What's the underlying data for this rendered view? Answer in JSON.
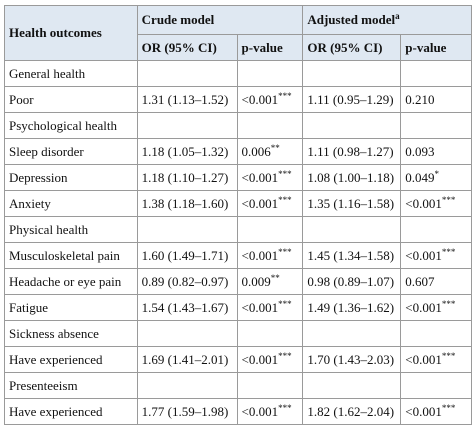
{
  "header": {
    "outcome": "Health outcomes",
    "crude": "Crude model",
    "adjusted": "Adjusted model",
    "adjusted_sup": "a",
    "columns": [
      "OR (95% CI)",
      "p-value",
      "OR (95% CI)",
      "p-value"
    ]
  },
  "rows": [
    {
      "label": "General health"
    },
    {
      "label": "Poor",
      "cells": [
        {
          "text": "1.31 (1.13–1.52)"
        },
        {
          "text": "<0.001",
          "sup": "***"
        },
        {
          "text": "1.11 (0.95–1.29)"
        },
        {
          "text": "0.210"
        }
      ]
    },
    {
      "label": "Psychological health"
    },
    {
      "label": "Sleep disorder",
      "cells": [
        {
          "text": "1.18 (1.05–1.32)"
        },
        {
          "text": "0.006",
          "sup": "**"
        },
        {
          "text": "1.11 (0.98–1.27)"
        },
        {
          "text": "0.093"
        }
      ]
    },
    {
      "label": "Depression",
      "cells": [
        {
          "text": "1.18 (1.10–1.27)"
        },
        {
          "text": "<0.001",
          "sup": "***"
        },
        {
          "text": "1.08 (1.00–1.18)"
        },
        {
          "text": "0.049",
          "sup": "*"
        }
      ]
    },
    {
      "label": "Anxiety",
      "cells": [
        {
          "text": "1.38 (1.18–1.60)"
        },
        {
          "text": "<0.001",
          "sup": "***"
        },
        {
          "text": "1.35 (1.16–1.58)"
        },
        {
          "text": "<0.001",
          "sup": "***"
        }
      ]
    },
    {
      "label": "Physical health"
    },
    {
      "label": "Musculoskeletal pain",
      "cells": [
        {
          "text": "1.60 (1.49–1.71)"
        },
        {
          "text": "<0.001",
          "sup": "***"
        },
        {
          "text": "1.45 (1.34–1.58)"
        },
        {
          "text": "<0.001",
          "sup": "***"
        }
      ]
    },
    {
      "label": "Headache or eye pain",
      "cells": [
        {
          "text": "0.89 (0.82–0.97)"
        },
        {
          "text": "0.009",
          "sup": "**"
        },
        {
          "text": "0.98 (0.89–1.07)"
        },
        {
          "text": "0.607"
        }
      ]
    },
    {
      "label": "Fatigue",
      "cells": [
        {
          "text": "1.54 (1.43–1.67)"
        },
        {
          "text": "<0.001",
          "sup": "***"
        },
        {
          "text": "1.49 (1.36–1.62)"
        },
        {
          "text": "<0.001",
          "sup": "***"
        }
      ]
    },
    {
      "label": "Sickness absence"
    },
    {
      "label": "Have experienced",
      "cells": [
        {
          "text": "1.69 (1.41–2.01)"
        },
        {
          "text": "<0.001",
          "sup": "***"
        },
        {
          "text": "1.70 (1.43–2.03)"
        },
        {
          "text": "<0.001",
          "sup": "***"
        }
      ]
    },
    {
      "label": "Presenteeism"
    },
    {
      "label": "Have experienced",
      "cells": [
        {
          "text": "1.77 (1.59–1.98)"
        },
        {
          "text": "<0.001",
          "sup": "***"
        },
        {
          "text": "1.82 (1.62–2.04)"
        },
        {
          "text": "<0.001",
          "sup": "***"
        }
      ]
    }
  ]
}
